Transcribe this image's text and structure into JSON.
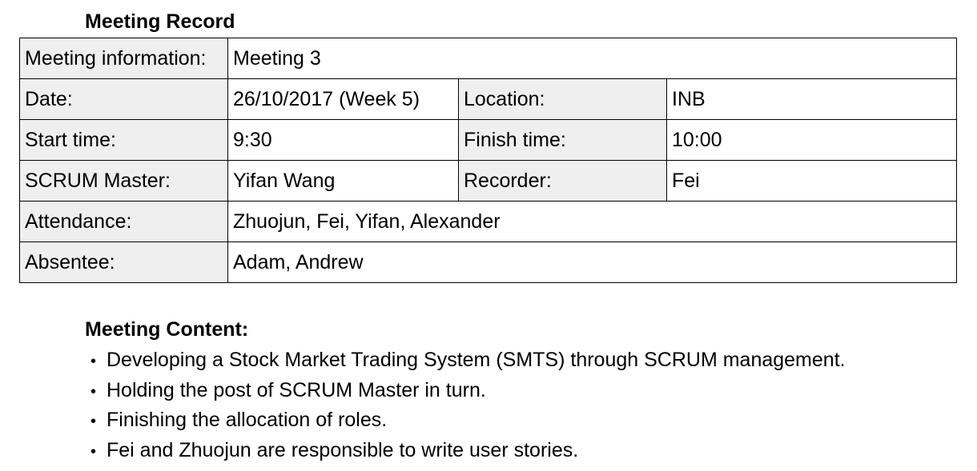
{
  "record_title": "Meeting Record",
  "table": {
    "meeting_info_label": "Meeting information:",
    "meeting_info_value": "Meeting 3",
    "date_label": "Date:",
    "date_value": "26/10/2017 (Week 5)",
    "location_label": "Location:",
    "location_value": "INB",
    "start_time_label": "Start time:",
    "start_time_value": "9:30",
    "finish_time_label": "Finish time:",
    "finish_time_value": "10:00",
    "scrum_master_label": "SCRUM Master:",
    "scrum_master_value": "Yifan Wang",
    "recorder_label": "Recorder:",
    "recorder_value": "Fei",
    "attendance_label": "Attendance:",
    "attendance_value": "Zhuojun, Fei, Yifan, Alexander",
    "absentee_label": "Absentee:",
    "absentee_value": "Adam, Andrew"
  },
  "content_title": "Meeting Content:",
  "content_items": [
    "Developing a Stock Market Trading System (SMTS) through SCRUM management.",
    "Holding the post of SCRUM Master in turn.",
    "Finishing the allocation of roles.",
    "Fei and Zhuojun are responsible to write user stories."
  ],
  "bullet_glyph": "•",
  "colors": {
    "label_cell_bg": "#efefef",
    "border": "#000000",
    "text": "#000000"
  }
}
